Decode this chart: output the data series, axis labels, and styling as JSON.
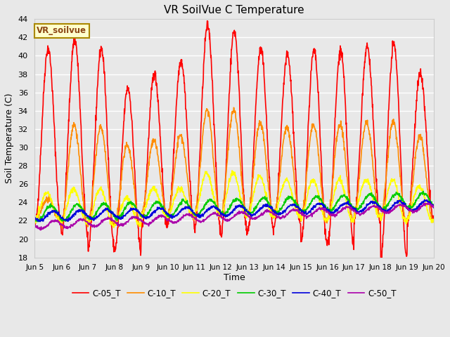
{
  "title": "VR SoilVue C Temperature",
  "ylabel": "Soil Temperature (C)",
  "xlabel": "Time",
  "ylim": [
    18,
    44
  ],
  "yticks": [
    18,
    20,
    22,
    24,
    26,
    28,
    30,
    32,
    34,
    36,
    38,
    40,
    42,
    44
  ],
  "legend_label": "VR_soilvue",
  "bg_color": "#e8e8e8",
  "plot_bg_color": "#e8e8e8",
  "grid_color": "#ffffff",
  "series_colors": [
    "#ff0000",
    "#ff8c00",
    "#ffff00",
    "#00cc00",
    "#0000dd",
    "#aa00aa"
  ],
  "series_names": [
    "C-05_T",
    "C-10_T",
    "C-20_T",
    "C-30_T",
    "C-40_T",
    "C-50_T"
  ],
  "x_tick_labels": [
    "Jun 5",
    "Jun 6",
    "Jun 7",
    "Jun 8",
    "Jun 9",
    "Jun 10",
    "Jun 11",
    "Jun 12",
    "Jun 13",
    "Jun 14",
    "Jun 15",
    "Jun 16",
    "Jun 17",
    "Jun 18",
    "Jun 19",
    "Jun 20"
  ],
  "n_days": 15,
  "samples_per_day": 96,
  "c05_peaks": [
    40.8,
    41.8,
    40.8,
    36.5,
    38.0,
    39.5,
    43.3,
    42.7,
    40.7,
    40.0,
    40.5,
    40.5,
    41.0,
    41.3,
    38.0
  ],
  "c05_mins": [
    21.5,
    20.5,
    19.0,
    18.8,
    21.0,
    22.0,
    21.0,
    20.5,
    20.8,
    21.5,
    19.5,
    19.5,
    22.0,
    18.0,
    22.0
  ],
  "c10_peaks": [
    24.3,
    32.5,
    32.2,
    30.3,
    30.8,
    31.3,
    34.1,
    34.1,
    32.7,
    32.2,
    32.5,
    32.5,
    32.7,
    32.7,
    31.2
  ],
  "c10_mins": [
    22.0,
    21.5,
    21.5,
    21.5,
    22.5,
    22.5,
    22.5,
    22.5,
    22.5,
    22.5,
    22.0,
    22.0,
    22.5,
    22.0,
    22.0
  ],
  "c20_peaks": [
    25.0,
    25.5,
    25.5,
    24.5,
    25.5,
    25.5,
    27.2,
    27.2,
    26.8,
    26.5,
    26.5,
    26.5,
    26.5,
    26.5,
    25.8
  ],
  "c20_mins": [
    22.0,
    21.8,
    21.5,
    21.5,
    22.5,
    22.5,
    22.5,
    22.5,
    22.5,
    22.5,
    22.0,
    22.0,
    22.5,
    22.0,
    22.0
  ],
  "c30_base": 22.8,
  "c30_amp": 0.8,
  "c40_base": 22.5,
  "c40_amp": 0.5,
  "c50_base": 21.5,
  "c50_amp": 0.4
}
